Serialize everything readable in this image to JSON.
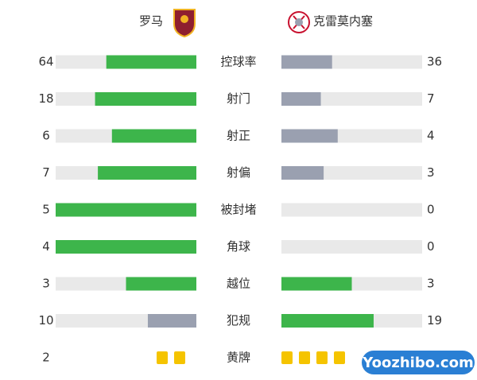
{
  "home": {
    "name": "罗马"
  },
  "away": {
    "name": "克雷莫内塞"
  },
  "stats": [
    {
      "label": "控球率",
      "home": 64,
      "away": 36
    },
    {
      "label": "射门",
      "home": 18,
      "away": 7
    },
    {
      "label": "射正",
      "home": 6,
      "away": 4
    },
    {
      "label": "射偏",
      "home": 7,
      "away": 3
    },
    {
      "label": "被封堵",
      "home": 5,
      "away": 0
    },
    {
      "label": "角球",
      "home": 4,
      "away": 0
    },
    {
      "label": "越位",
      "home": 3,
      "away": 3
    },
    {
      "label": "犯规",
      "home": 10,
      "away": 19
    },
    {
      "label": "黄牌",
      "home": 2,
      "away": 4,
      "display": "cards"
    }
  ],
  "colors": {
    "lead": "#3db54b",
    "trail": "#9aa0b0",
    "track": "#e9e9e9",
    "card": "#f5c400"
  },
  "watermark": "Yoozhibo.com"
}
